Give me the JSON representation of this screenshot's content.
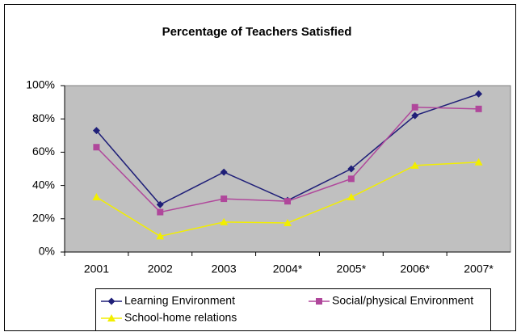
{
  "chart_data": {
    "type": "line",
    "title": "Percentage of Teachers Satisfied",
    "categories": [
      "2001",
      "2002",
      "2003",
      "2004*",
      "2005*",
      "2006*",
      "2007*"
    ],
    "series": [
      {
        "name": "Learning Environment",
        "color": "#1f1f78",
        "marker": "diamond",
        "values": [
          73,
          28.5,
          48,
          31,
          50,
          82,
          95
        ]
      },
      {
        "name": "Social/physical Environment",
        "color": "#b0479b",
        "marker": "square",
        "values": [
          63,
          24,
          32,
          30.5,
          44,
          87,
          86
        ]
      },
      {
        "name": "School-home relations",
        "color": "#f2ee00",
        "marker": "triangle",
        "values": [
          33,
          9.5,
          18,
          17.5,
          33,
          52,
          54
        ]
      }
    ],
    "ylim": [
      0,
      100
    ],
    "yticks": [
      {
        "value": 0,
        "label": "0%"
      },
      {
        "value": 20,
        "label": "20%"
      },
      {
        "value": 40,
        "label": "40%"
      },
      {
        "value": 60,
        "label": "60%"
      },
      {
        "value": 80,
        "label": "80%"
      },
      {
        "value": 100,
        "label": "100%"
      }
    ],
    "grid": false,
    "plot_background": "#c0c0c0",
    "legend": "bottom"
  }
}
